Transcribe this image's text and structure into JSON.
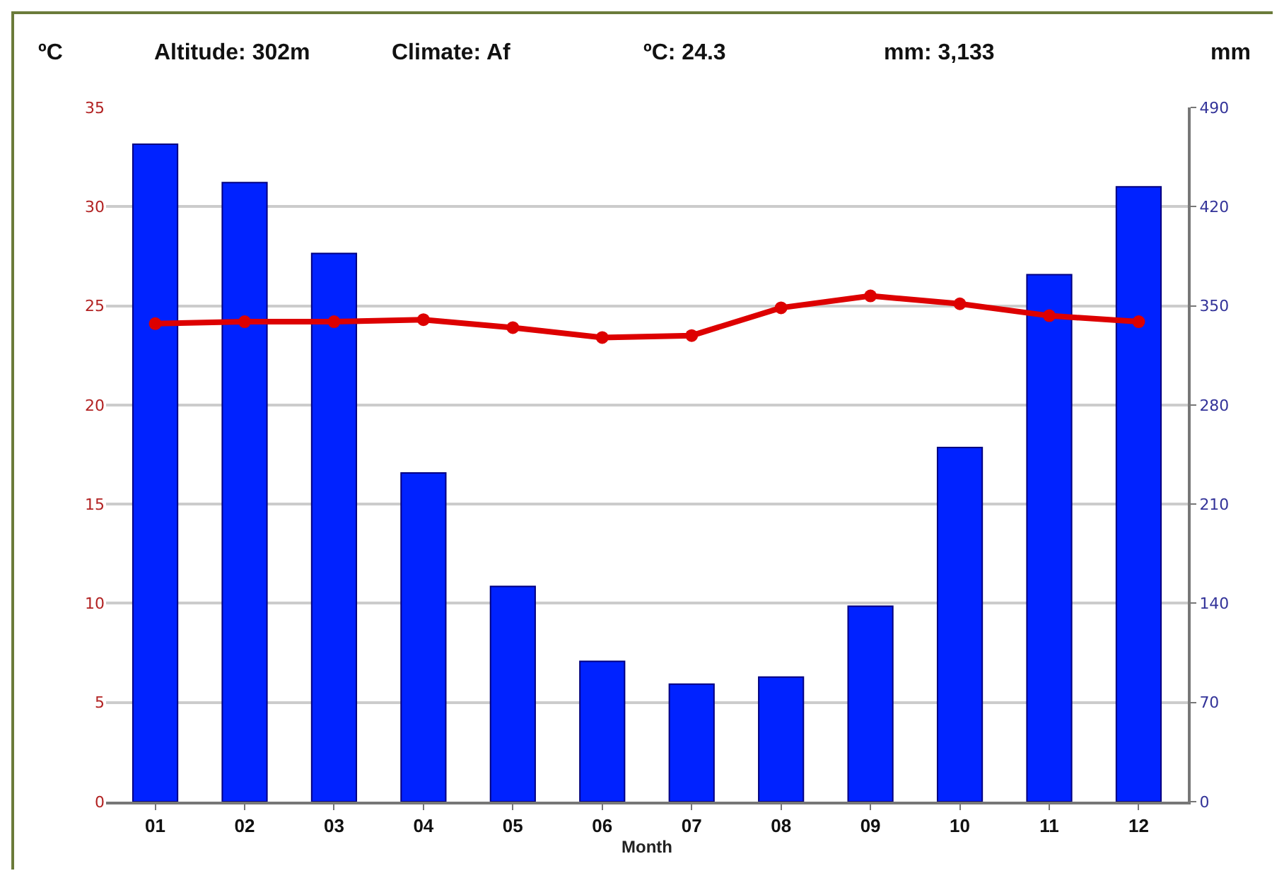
{
  "chart_data": {
    "type": "bar",
    "categories": [
      "01",
      "02",
      "03",
      "04",
      "05",
      "06",
      "07",
      "08",
      "09",
      "10",
      "11",
      "12"
    ],
    "xlabel": "Month",
    "ylabel": "ºC",
    "y2label": "mm",
    "annotations": [
      "Altitude: 302m",
      "Climate: Af",
      "ºC: 24.3",
      "mm: 3,133"
    ],
    "series": [
      {
        "axis": "y2",
        "color": "#0022ff",
        "values": [
          464,
          437,
          387,
          232,
          152,
          99,
          83,
          88,
          138,
          250,
          372,
          434
        ]
      },
      {
        "type": "line",
        "axis": "y",
        "color": "#dd0000",
        "marker": "circle",
        "line_style": "solid",
        "values": [
          24.1,
          24.2,
          24.2,
          24.3,
          23.9,
          23.4,
          23.5,
          24.9,
          25.5,
          25.1,
          24.5,
          24.2
        ]
      }
    ],
    "ylim": [
      0,
      35
    ],
    "yticks": [
      0,
      5,
      10,
      15,
      20,
      25,
      30,
      35
    ],
    "y2lim": [
      0,
      490
    ],
    "y2ticks": [
      0,
      70,
      140,
      210,
      280,
      350,
      420,
      490
    ],
    "grid": "y"
  }
}
